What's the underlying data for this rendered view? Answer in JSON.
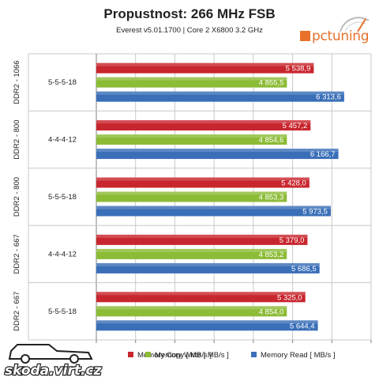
{
  "title": "Propustnost: 266 MHz FSB",
  "subtitle": "Everest v5.01.1700 | Core 2 X6800 3.2 GHz",
  "logo_text": "pctuning",
  "watermark_text": "skoda.virt.cz",
  "colors": {
    "copy": "#c8262e",
    "write": "#8cbb36",
    "read": "#3a6fb8",
    "grid": "#c8c8c8",
    "axis": "#808080"
  },
  "chart_data": {
    "type": "bar",
    "orientation": "horizontal",
    "grid": true,
    "legend_position": "bottom",
    "xlim": [
      0,
      7000
    ],
    "groups": [
      {
        "module": "DDR2 - 1066",
        "timing": "5-5-5-18"
      },
      {
        "module": "DDR2 - 800",
        "timing": "4-4-4-12"
      },
      {
        "module": "DDR2 - 800",
        "timing": "5-5-5-18"
      },
      {
        "module": "DDR2 - 667",
        "timing": "4-4-4-12"
      },
      {
        "module": "DDR2 - 667",
        "timing": "5-5-5-18"
      }
    ],
    "series": [
      {
        "name": "Memory Copy [ MB/s ]",
        "color_key": "copy",
        "values": [
          5538.9,
          5457.2,
          5428.0,
          5379.0,
          5325.0
        ],
        "labels": [
          "5 538,9",
          "5 457,2",
          "5 428,0",
          "5 379,0",
          "5 325,0"
        ]
      },
      {
        "name": "Memory Write [ MB/s ]",
        "color_key": "write",
        "values": [
          4855.5,
          4854.6,
          4853.3,
          4853.2,
          4854.0
        ],
        "labels": [
          "4 855,5",
          "4 854,6",
          "4 853,3",
          "4 853,2",
          "4 854,0"
        ]
      },
      {
        "name": "Memory Read [ MB/s ]",
        "color_key": "read",
        "values": [
          6313.6,
          6166.7,
          5973.5,
          5686.5,
          5644.4
        ],
        "labels": [
          "6 313,6",
          "6 166,7",
          "5 973,5",
          "5 686,5",
          "5 644,4"
        ]
      }
    ]
  }
}
